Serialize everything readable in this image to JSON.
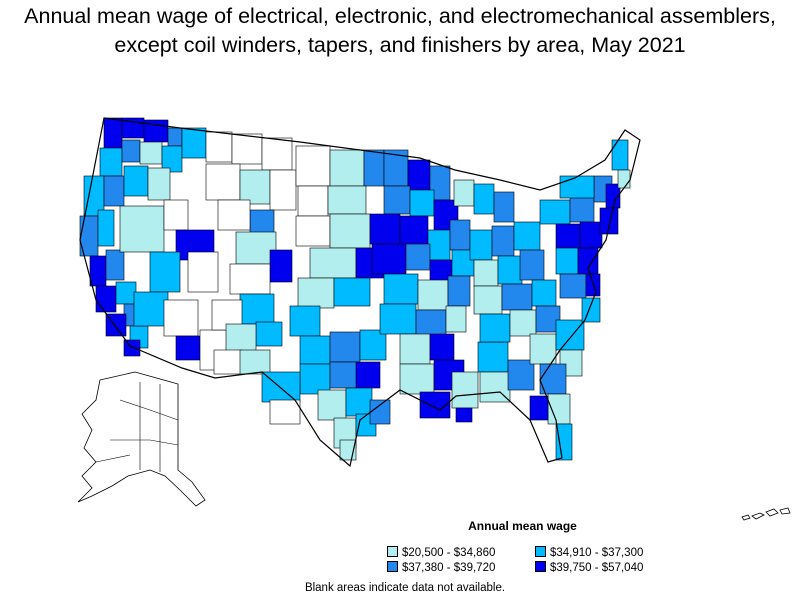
{
  "title": "Annual mean wage of electrical, electronic, and electromechanical assemblers, except coil winders, tapers, and finishers by area, May 2021",
  "legend": {
    "title": "Annual mean wage",
    "items": [
      {
        "label": "$20,500 - $34,860",
        "color": "#b2eeee"
      },
      {
        "label": "$34,910 - $37,300",
        "color": "#00bbff"
      },
      {
        "label": "$37,380 - $39,720",
        "color": "#2288ee"
      },
      {
        "label": "$39,750 - $57,040",
        "color": "#0000ee"
      }
    ]
  },
  "note": "Blank areas indicate data not available.",
  "colors": {
    "blank": "#ffffff",
    "border": "#000000"
  }
}
